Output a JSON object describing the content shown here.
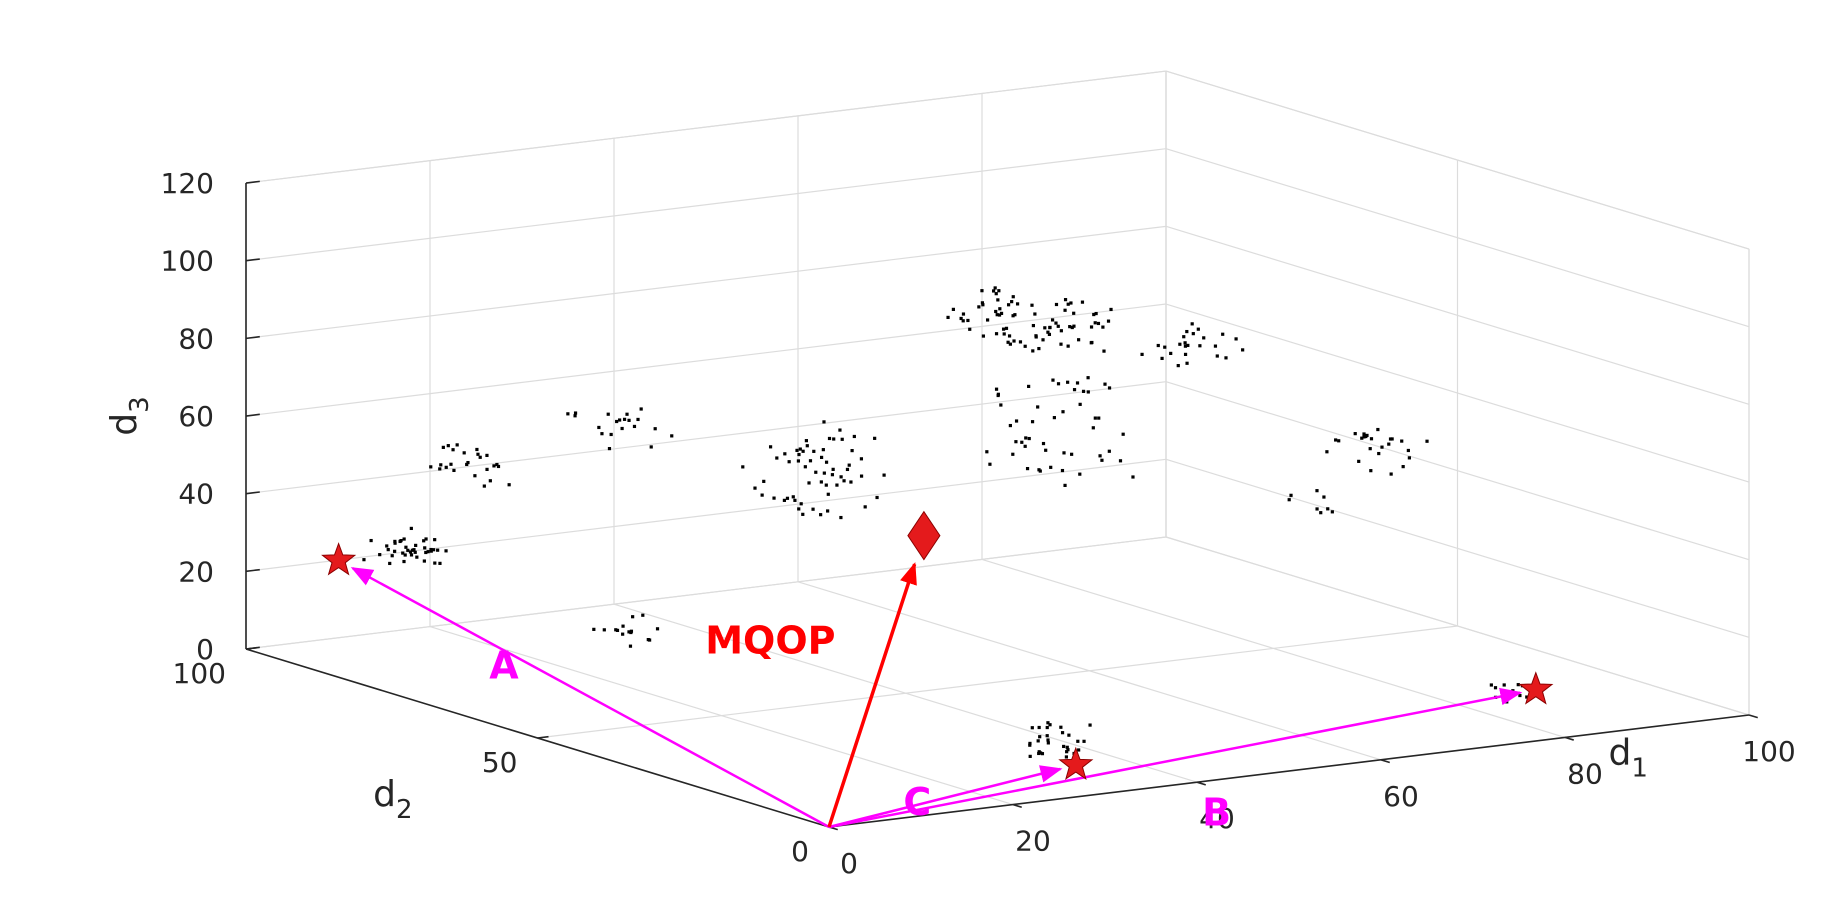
{
  "chart_data": {
    "type": "scatter3d",
    "title": "",
    "axes": {
      "x": {
        "label": "d",
        "label_sub": "1",
        "range": [
          0,
          100
        ],
        "ticks": [
          "0",
          "20",
          "40",
          "60",
          "80",
          "100"
        ]
      },
      "y": {
        "label": "d",
        "label_sub": "2",
        "range": [
          0,
          100
        ],
        "ticks": [
          "0",
          "50",
          "100"
        ]
      },
      "z": {
        "label": "d",
        "label_sub": "3",
        "range": [
          0,
          120
        ],
        "ticks": [
          "0",
          "20",
          "40",
          "60",
          "80",
          "100",
          "120"
        ]
      }
    },
    "grid": true,
    "clusters": [
      {
        "center": [
          8,
          85,
          30
        ],
        "spread": [
          3,
          4,
          4
        ],
        "count": 40
      },
      {
        "center": [
          5,
          70,
          60
        ],
        "spread": [
          3,
          5,
          5
        ],
        "count": 25
      },
      {
        "center": [
          30,
          85,
          55
        ],
        "spread": [
          4,
          5,
          5
        ],
        "count": 20
      },
      {
        "center": [
          10,
          50,
          25
        ],
        "spread": [
          3,
          4,
          3
        ],
        "count": 15
      },
      {
        "center": [
          40,
          65,
          50
        ],
        "spread": [
          5,
          6,
          10
        ],
        "count": 60
      },
      {
        "center": [
          55,
          50,
          90
        ],
        "spread": [
          5,
          5,
          6
        ],
        "count": 60
      },
      {
        "center": [
          45,
          45,
          100
        ],
        "spread": [
          4,
          4,
          4
        ],
        "count": 20
      },
      {
        "center": [
          68,
          45,
          85
        ],
        "spread": [
          4,
          4,
          4
        ],
        "count": 25
      },
      {
        "center": [
          60,
          55,
          60
        ],
        "spread": [
          6,
          6,
          12
        ],
        "count": 50
      },
      {
        "center": [
          85,
          40,
          55
        ],
        "spread": [
          4,
          4,
          6
        ],
        "count": 25
      },
      {
        "center": [
          80,
          45,
          40
        ],
        "spread": [
          3,
          3,
          3
        ],
        "count": 8
      },
      {
        "center": [
          30,
          8,
          10
        ],
        "spread": [
          3,
          3,
          4
        ],
        "count": 30
      },
      {
        "center": [
          78,
          6,
          10
        ],
        "spread": [
          2,
          2,
          2
        ],
        "count": 12
      }
    ],
    "points": [
      {
        "name": "A",
        "marker": "star",
        "color": "#e41a1c",
        "coord": [
          5,
          92,
          25
        ]
      },
      {
        "name": "B",
        "marker": "star",
        "color": "#e41a1c",
        "coord": [
          80,
          5,
          10
        ]
      },
      {
        "name": "C",
        "marker": "star",
        "color": "#e41a1c",
        "coord": [
          30,
          5,
          5
        ]
      },
      {
        "name": "MQOP",
        "marker": "diamond",
        "color": "#e41a1c",
        "coord": [
          42,
          50,
          40
        ]
      }
    ],
    "vectors": [
      {
        "label": "A",
        "to": "A",
        "color": "#ff00ff"
      },
      {
        "label": "B",
        "to": "B",
        "color": "#ff00ff"
      },
      {
        "label": "C",
        "to": "C",
        "color": "#ff00ff"
      },
      {
        "label": "MQOP",
        "to": "MQOP",
        "color": "#ff0000"
      }
    ],
    "colors": {
      "marker": "#e41a1c",
      "scatter": "#000000",
      "grid": "#dcdcdc",
      "axis": "#262626"
    }
  }
}
